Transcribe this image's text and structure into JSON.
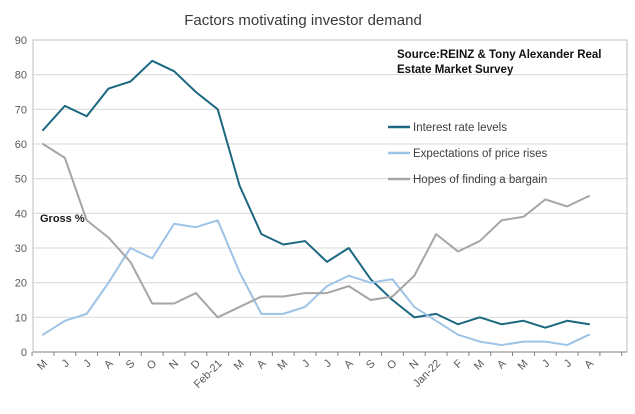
{
  "title": "Factors motivating investor demand",
  "source": {
    "line1": "Source:REINZ & Tony Alexander Real",
    "line2": "Estate Market Survey"
  },
  "gross_label": "Gross %",
  "chart_data": {
    "type": "line",
    "title": "Factors motivating investor demand",
    "categories": [
      "M",
      "J",
      "J",
      "A",
      "S",
      "O",
      "N",
      "D",
      "Feb-21",
      "M",
      "A",
      "M",
      "J",
      "J",
      "A",
      "S",
      "O",
      "N",
      "Jan-22",
      "F",
      "M",
      "A",
      "M",
      "J",
      "J",
      "A"
    ],
    "series": [
      {
        "name": "Interest rate levels",
        "color": "#1B6880",
        "values": [
          64,
          71,
          68,
          76,
          78,
          84,
          81,
          75,
          70,
          48,
          34,
          31,
          32,
          26,
          30,
          21,
          15,
          10,
          11,
          8,
          10,
          8,
          9,
          7,
          9,
          8
        ]
      },
      {
        "name": "Expectations of price rises",
        "color": "#9DC3E6",
        "values": [
          5,
          9,
          11,
          20,
          30,
          27,
          37,
          36,
          38,
          23,
          11,
          11,
          13,
          19,
          22,
          20,
          21,
          13,
          9,
          5,
          3,
          2,
          3,
          3,
          2,
          5
        ]
      },
      {
        "name": "Hopes of finding a bargain",
        "color": "#A6A6A6",
        "values": [
          60,
          56,
          38,
          33,
          26,
          14,
          14,
          17,
          10,
          13,
          16,
          16,
          17,
          17,
          19,
          15,
          16,
          22,
          34,
          29,
          32,
          38,
          39,
          44,
          42,
          45
        ]
      }
    ],
    "xlabel": "",
    "ylabel": "Gross %",
    "ylim": [
      0,
      90
    ],
    "ytick_step": 10,
    "grid": true,
    "legend_position": "inside-right"
  },
  "colors": {
    "gridline": "#D9D9D9",
    "plot_border": "#BFBFBF",
    "axis_line": "#7F7F7F",
    "tick_label": "#595959"
  }
}
